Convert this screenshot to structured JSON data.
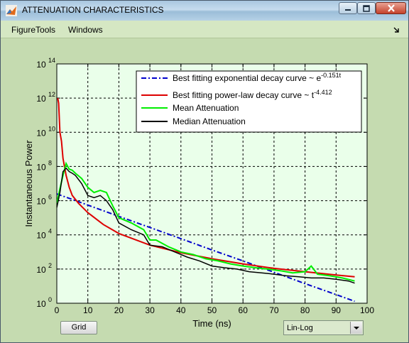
{
  "window": {
    "title": "ATTENUATION CHARACTERISTICS"
  },
  "menu": {
    "items": [
      "FigureTools",
      "Windows"
    ]
  },
  "controls": {
    "grid_label": "Grid",
    "scale_value": "Lin-Log"
  },
  "icons": {
    "app": "matlab-icon",
    "minimize": "minimize-icon",
    "maximize": "maximize-icon",
    "close": "close-icon",
    "dock": "dock-arrow-icon",
    "dropdown": "chevron-down-icon"
  },
  "colors": {
    "plot_background": "#eaffea",
    "figure_background": "#c5dbb0"
  },
  "chart_data": {
    "type": "line",
    "title": "",
    "xlabel": "Time (ns)",
    "ylabel": "Instantaneous Power",
    "xlim": [
      0,
      100
    ],
    "ylim": [
      1,
      100000000000000
    ],
    "yscale": "log",
    "grid": true,
    "legend_position": "top-right",
    "x_ticks": [
      0,
      10,
      20,
      30,
      40,
      50,
      60,
      70,
      80,
      90,
      100
    ],
    "y_ticks": [
      1,
      100,
      10000,
      1000000,
      100000000,
      10000000000,
      1000000000000,
      100000000000000
    ],
    "y_tick_base": "10",
    "y_tick_exponents": [
      "0",
      "2",
      "4",
      "6",
      "8",
      "10",
      "12",
      "14"
    ],
    "series": [
      {
        "name_prefix": "Best fitting exponential decay curve ~ e",
        "name_sup": "-0.151t",
        "color": "#0000cc",
        "style": "dash-dot",
        "x": [
          0,
          10,
          20,
          30,
          40,
          50,
          60,
          70,
          80,
          90,
          96
        ],
        "y": [
          2500000,
          550000,
          120000,
          27000,
          6000,
          1300,
          300,
          65,
          14,
          3.2,
          1.3
        ]
      },
      {
        "name_prefix": "Best fitting power-law decay curve ~ t",
        "name_sup": "-4.412",
        "color": "#dd0000",
        "style": "solid",
        "x": [
          0.3,
          0.6,
          1,
          1.5,
          2,
          3,
          4,
          5,
          7,
          10,
          15,
          20,
          30,
          40,
          50,
          60,
          70,
          80,
          90,
          96
        ],
        "y": [
          1000000000000,
          500000000000,
          10000000000,
          3000000000,
          300000000,
          30000000,
          6000000,
          2000000,
          700000,
          200000,
          40000,
          12000,
          2500,
          900,
          400,
          200,
          110,
          70,
          45,
          35
        ]
      },
      {
        "name": "Mean Attenuation",
        "color": "#00ee00",
        "style": "solid",
        "x": [
          0,
          1,
          2,
          3,
          4,
          5,
          6,
          8,
          10,
          12,
          14,
          16,
          18,
          20,
          24,
          28,
          30,
          32,
          36,
          40,
          44,
          48,
          52,
          56,
          60,
          64,
          68,
          72,
          76,
          80,
          82,
          84,
          88,
          92,
          96
        ],
        "y": [
          700000,
          5000000,
          30000000,
          150000000,
          70000000,
          60000000,
          40000000,
          20000000,
          6000000,
          3000000,
          4000000,
          3000000,
          500000,
          100000,
          50000,
          20000,
          5000,
          5000,
          2000,
          1000,
          700,
          400,
          300,
          200,
          150,
          120,
          100,
          80,
          60,
          70,
          150,
          50,
          40,
          30,
          20
        ]
      },
      {
        "name": "Median Attenuation",
        "color": "#000000",
        "style": "solid",
        "x": [
          0,
          1,
          2,
          3,
          4,
          5,
          6,
          8,
          10,
          12,
          14,
          16,
          18,
          20,
          24,
          28,
          30,
          34,
          38,
          42,
          46,
          50,
          54,
          58,
          62,
          66,
          70,
          74,
          78,
          82,
          86,
          90,
          94,
          96
        ],
        "y": [
          400000,
          3000000,
          50000000,
          80000000,
          50000000,
          40000000,
          30000000,
          10000000,
          2000000,
          1500000,
          2000000,
          1000000,
          300000,
          50000,
          20000,
          10000,
          2500,
          2000,
          1000,
          500,
          300,
          150,
          120,
          100,
          70,
          60,
          50,
          40,
          35,
          30,
          30,
          25,
          20,
          15
        ]
      }
    ]
  }
}
